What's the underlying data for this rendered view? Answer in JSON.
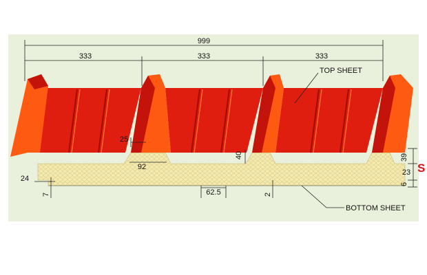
{
  "diagram": {
    "dimensions": {
      "total_width": "999",
      "pitch_1": "333",
      "pitch_2": "333",
      "pitch_3": "333",
      "rib_height_top": "25",
      "rib_base_width": "92",
      "rib_height_side": "40",
      "edge_width": "24",
      "edge_step": "7",
      "foam_cell_width": "62.5",
      "gap": "2",
      "right_top": "39",
      "right_mid": "23",
      "right_bottom": "6"
    },
    "labels": {
      "top_sheet": "TOP SHEET",
      "bottom_sheet": "BOTTOM SHEET",
      "thickness": "S"
    },
    "colors": {
      "background": "#ffffff",
      "panel_background": "#e9f1dc",
      "sheet_red": "#e01e10",
      "sheet_orange": "#ff5a12",
      "sheet_dark": "#a40c06",
      "foam": "#f4eab0",
      "foam_cell": "#d9c984",
      "thickness_label": "#e0101a"
    }
  }
}
